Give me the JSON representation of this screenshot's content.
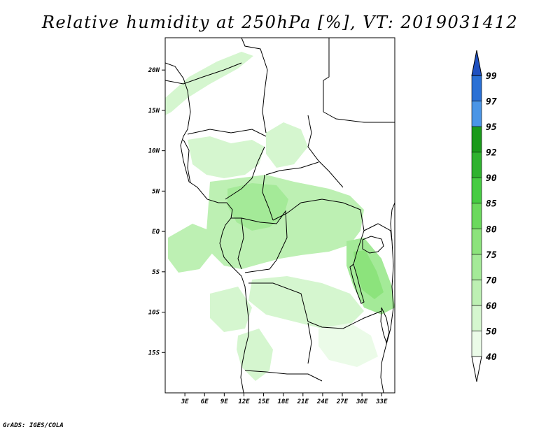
{
  "title": "Relative humidity at 250hPa [%], VT: 2019031412",
  "footer": "GrADS: IGES/COLA",
  "map": {
    "lon_range": [
      0,
      35
    ],
    "lat_range": [
      -20,
      24
    ],
    "lon_ticks": [
      "3E",
      "6E",
      "9E",
      "12E",
      "15E",
      "18E",
      "21E",
      "24E",
      "27E",
      "30E",
      "33E"
    ],
    "lat_ticks": [
      "20N",
      "15N",
      "10N",
      "5N",
      "EQ",
      "5S",
      "10S",
      "15S"
    ]
  },
  "colorbar": {
    "levels": [
      "40",
      "50",
      "60",
      "70",
      "75",
      "80",
      "85",
      "90",
      "92",
      "95",
      "97",
      "99"
    ],
    "colors": [
      "#ffffff",
      "#ebfbe8",
      "#d5f6cf",
      "#bdf0b3",
      "#a4ea98",
      "#8ce37c",
      "#6bd95d",
      "#46cc42",
      "#2fb22f",
      "#1a9a1a",
      "#4a95e6",
      "#2a70d5",
      "#1f50c0"
    ]
  }
}
